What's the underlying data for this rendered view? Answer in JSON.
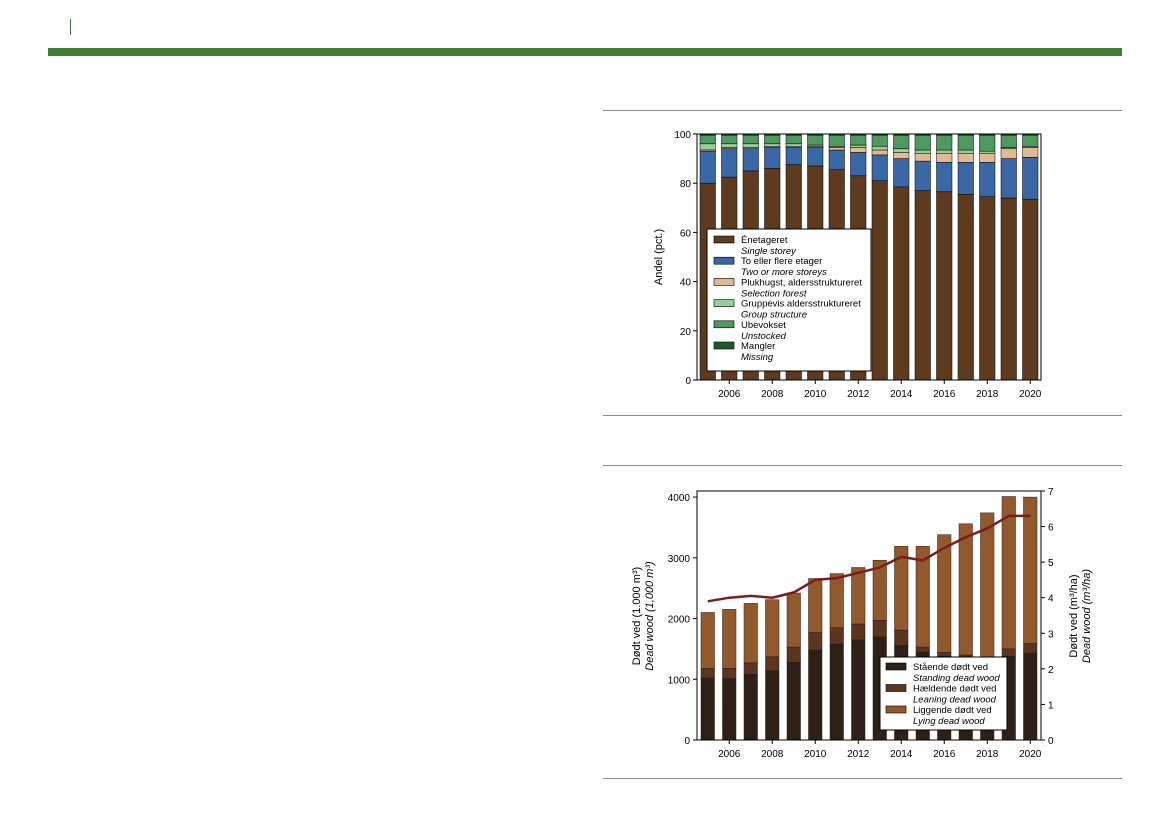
{
  "colors": {
    "header_green": "#3e7d33",
    "single_storey": "#5e3a1f",
    "two_or_more": "#3a68a6",
    "selection_forest": "#e2b993",
    "group_structure": "#94cf98",
    "unstocked": "#4f9860",
    "missing": "#1f5a2c",
    "standing_dead": "#2e1f17",
    "leaning_dead": "#5b3520",
    "lying_dead": "#925a2c",
    "line": "#7c1d1d"
  },
  "chart_data": [
    {
      "type": "bar",
      "stacked": true,
      "ylabel": "Andel (pct.)",
      "ylim": [
        0,
        100
      ],
      "yticks": [
        0,
        20,
        40,
        60,
        80,
        100
      ],
      "xticks": [
        2006,
        2008,
        2010,
        2012,
        2014,
        2016,
        2018,
        2020
      ],
      "categories": [
        2005,
        2006,
        2007,
        2008,
        2009,
        2010,
        2011,
        2012,
        2013,
        2014,
        2015,
        2016,
        2017,
        2018,
        2019,
        2020
      ],
      "series": [
        {
          "name": "Énetageret",
          "name_en": "Single storey",
          "values": [
            80,
            82.5,
            85,
            86,
            87.5,
            87,
            85.5,
            83,
            81,
            78.5,
            77,
            76.5,
            75.5,
            74.5,
            74,
            73.5
          ]
        },
        {
          "name": "To eller flere etager",
          "name_en": "Two or more storeys",
          "values": [
            13,
            11.5,
            9,
            8.5,
            7,
            7.5,
            8,
            9.5,
            10.5,
            11.5,
            12,
            12,
            13,
            14,
            16,
            17
          ]
        },
        {
          "name": "Plukhugst, aldersstruktureret",
          "name_en": "Selection forest",
          "values": [
            0.5,
            0.5,
            0.5,
            0.5,
            0.5,
            0.5,
            1,
            2,
            2,
            2.5,
            3,
            3.5,
            3.5,
            3.5,
            4,
            4
          ]
        },
        {
          "name": "Gruppevis aldersstruktureret",
          "name_en": "Group structure",
          "values": [
            2.5,
            1.5,
            1.5,
            1,
            1,
            0.5,
            0.5,
            1,
            1.5,
            1.5,
            1.5,
            1.5,
            1.5,
            1,
            0.5,
            0.5
          ]
        },
        {
          "name": "Ubevokset",
          "name_en": "Unstocked",
          "values": [
            3.5,
            3.5,
            3.5,
            3.5,
            3.5,
            4,
            4.5,
            4,
            4.5,
            5.5,
            6,
            6,
            6,
            6.5,
            5,
            4.5
          ]
        },
        {
          "name": "Mangler",
          "name_en": "Missing",
          "values": [
            0.5,
            0.5,
            0.5,
            0.5,
            0.5,
            0.5,
            0.5,
            0.5,
            0.5,
            0.5,
            0.5,
            0.5,
            0.5,
            0.5,
            0.5,
            0.5
          ]
        }
      ],
      "legend_position": "lower-left"
    },
    {
      "type": "bar",
      "stacked": true,
      "ylabel": "Dødt ved (1.000 m³)",
      "ylabel_en": "Dead wood (1,000 m³)",
      "ylim": [
        0,
        4100
      ],
      "yticks": [
        0,
        1000,
        2000,
        3000,
        4000
      ],
      "y2label": "Dødt ved (m³/ha)",
      "y2label_en": "Dead wood (m³/ha)",
      "y2lim": [
        0,
        7
      ],
      "y2ticks": [
        0,
        1,
        2,
        3,
        4,
        5,
        6,
        7
      ],
      "xticks": [
        2006,
        2008,
        2010,
        2012,
        2014,
        2016,
        2018,
        2020
      ],
      "categories": [
        2005,
        2006,
        2007,
        2008,
        2009,
        2010,
        2011,
        2012,
        2013,
        2014,
        2015,
        2016,
        2017,
        2018,
        2019,
        2020
      ],
      "series": [
        {
          "name": "Stående dødt ved",
          "name_en": "Standing dead wood",
          "values": [
            1020,
            1010,
            1080,
            1140,
            1280,
            1480,
            1580,
            1650,
            1700,
            1560,
            1450,
            1380,
            1330,
            1290,
            1380,
            1430
          ]
        },
        {
          "name": "Hældende dødt ved",
          "name_en": "Leaning dead wood",
          "values": [
            160,
            170,
            190,
            230,
            250,
            290,
            270,
            260,
            270,
            250,
            80,
            60,
            70,
            80,
            120,
            160
          ]
        },
        {
          "name": "Liggende dødt ved",
          "name_en": "Lying dead wood",
          "values": [
            920,
            970,
            980,
            940,
            890,
            890,
            890,
            930,
            990,
            1380,
            1660,
            1940,
            2160,
            2370,
            2510,
            2410
          ]
        }
      ],
      "line": {
        "name": "Dødt ved (m³/ha)",
        "values": [
          3.9,
          4.0,
          4.05,
          4.0,
          4.15,
          4.5,
          4.55,
          4.7,
          4.85,
          5.15,
          5.05,
          5.4,
          5.7,
          5.95,
          6.3,
          6.3
        ]
      },
      "legend_position": "lower-right"
    }
  ]
}
